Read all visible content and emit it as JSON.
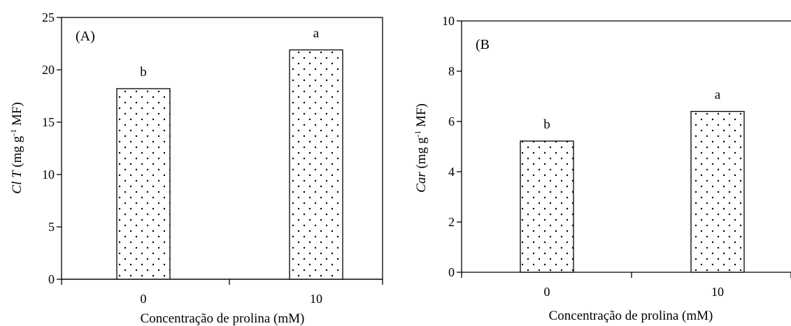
{
  "chart_data": [
    {
      "type": "bar",
      "panel_label": "(A)",
      "categories": [
        "0",
        "10"
      ],
      "values": [
        18.2,
        21.9
      ],
      "letters": [
        "b",
        "a"
      ],
      "xlabel": "Concentração de prolina (mM)",
      "ylabel": {
        "italic": "Cl T",
        "pre": " (mg g",
        "sup": "-1",
        "post": " MF)"
      },
      "ylim": [
        0,
        25
      ],
      "yticks": [
        "0",
        "5",
        "10",
        "15",
        "20",
        "25"
      ],
      "grid": false
    },
    {
      "type": "bar",
      "panel_label": "(B",
      "categories": [
        "0",
        "10"
      ],
      "values": [
        5.22,
        6.4
      ],
      "letters": [
        "b",
        "a"
      ],
      "xlabel": "Concentração de prolina (mM)",
      "ylabel": {
        "italic": "Car",
        "pre": " (mg g",
        "sup": "-1",
        "post": " MF)"
      },
      "ylim": [
        0,
        10
      ],
      "yticks": [
        "0",
        "2",
        "4",
        "6",
        "8",
        "10"
      ],
      "grid": false
    }
  ],
  "colors": {
    "bar_fill": "#ffffff",
    "bar_stroke": "#000000",
    "dot": "#000000"
  }
}
